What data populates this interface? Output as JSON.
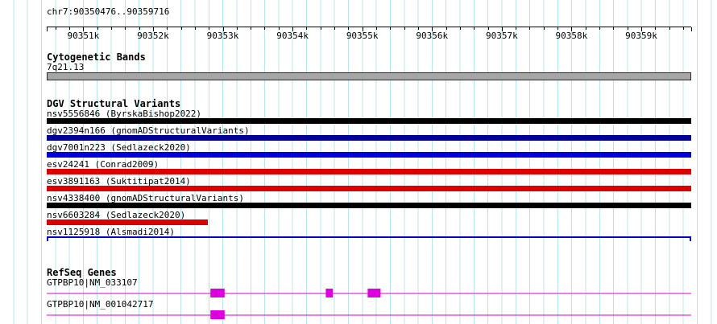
{
  "position": "chr7:90350476..90359716",
  "ruler": {
    "labels": [
      "90351k",
      "90352k",
      "90353k",
      "90354k",
      "90355k",
      "90356k",
      "90357k",
      "90358k",
      "90359k"
    ]
  },
  "cytobands": {
    "title": "Cytogenetic Bands",
    "band_label": "7q21.13",
    "band_color": "#a6a6a6"
  },
  "dgv": {
    "title": "DGV Structural Variants",
    "variants": [
      {
        "label": "nsv5556846 (ByrskaBishop2022)",
        "color": "#000000",
        "shape": "bar",
        "start_pct": 0,
        "end_pct": 100
      },
      {
        "label": "dgv2394n166 (gnomADStructuralVariants)",
        "color": "#000099",
        "shape": "bar",
        "start_pct": 0,
        "end_pct": 100
      },
      {
        "label": "dgv7001n223 (Sedlazeck2020)",
        "color": "#0000dd",
        "shape": "bar",
        "start_pct": 0,
        "end_pct": 100
      },
      {
        "label": "esv24241 (Conrad2009)",
        "color": "#dd0000",
        "shape": "bar",
        "start_pct": 0,
        "end_pct": 100
      },
      {
        "label": "esv3891163 (Suktitipat2014)",
        "color": "#dd0000",
        "shape": "bar",
        "start_pct": 0,
        "end_pct": 100
      },
      {
        "label": "nsv4338400 (gnomADStructuralVariants)",
        "color": "#000000",
        "shape": "bar",
        "start_pct": 0,
        "end_pct": 100
      },
      {
        "label": "nsv6603284 (Sedlazeck2020)",
        "color": "#dd0000",
        "shape": "bar",
        "start_pct": 0,
        "end_pct": 25
      },
      {
        "label": "nsv1125918 (Alsmadi2014)",
        "color": "#0000cc",
        "shape": "span",
        "start_pct": 0,
        "end_pct": 100
      }
    ]
  },
  "refseq": {
    "title": "RefSeq Genes",
    "genes": [
      {
        "label": "GTPBP10|NM_033107",
        "color": "#dd00dd",
        "exons": [
          {
            "start_pct": 25.4,
            "width_pct": 2.2
          },
          {
            "start_pct": 43.3,
            "width_pct": 1.1
          },
          {
            "start_pct": 49.8,
            "width_pct": 2.0
          }
        ]
      },
      {
        "label": "GTPBP10|NM_001042717",
        "color": "#dd00dd",
        "exons": [
          {
            "start_pct": 25.4,
            "width_pct": 2.2
          }
        ]
      }
    ]
  }
}
